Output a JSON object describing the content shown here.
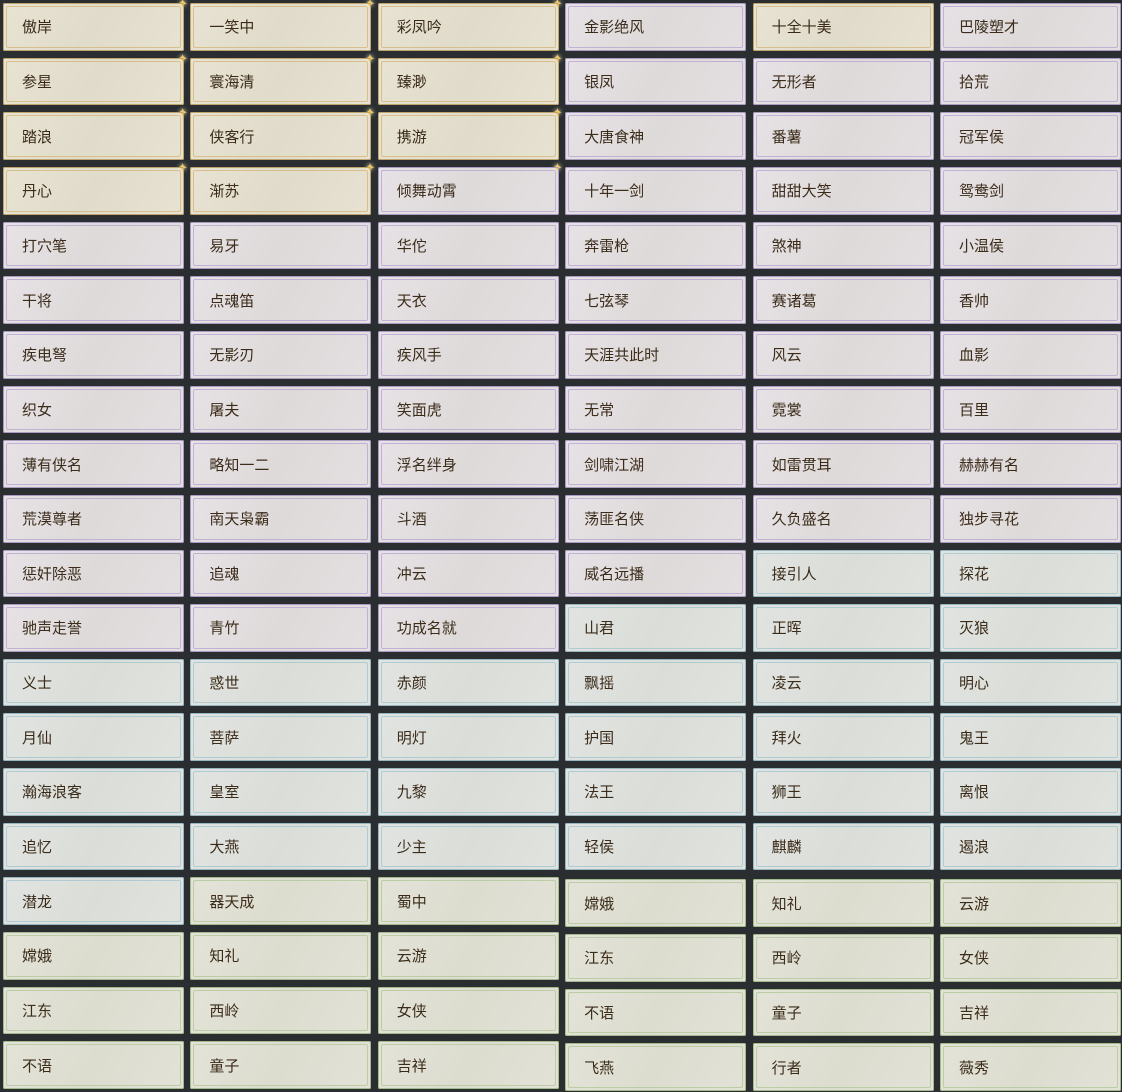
{
  "tier_colors": {
    "gold": "#d3b77a",
    "purple": "#b6a6cf",
    "blue": "#a5c4cf",
    "green": "#b3c79a"
  },
  "titles": [
    [
      [
        "傲岸",
        "gold",
        true
      ],
      [
        "一笑中",
        "gold",
        true
      ],
      [
        "彩凤吟",
        "gold",
        true
      ],
      [
        "金影绝风",
        "purple",
        false
      ],
      [
        "十全十美",
        "gold",
        false
      ],
      [
        "巴陵塑才",
        "purple",
        false
      ]
    ],
    [
      [
        "参星",
        "gold",
        true
      ],
      [
        "寰海清",
        "gold",
        true
      ],
      [
        "臻渺",
        "gold",
        true
      ],
      [
        "银凤",
        "purple",
        false
      ],
      [
        "无形者",
        "purple",
        false
      ],
      [
        "拾荒",
        "purple",
        false
      ]
    ],
    [
      [
        "踏浪",
        "gold",
        true
      ],
      [
        "侠客行",
        "gold",
        true
      ],
      [
        "携游",
        "gold",
        true
      ],
      [
        "大唐食神",
        "purple",
        false
      ],
      [
        "番薯",
        "purple",
        false
      ],
      [
        "冠军侯",
        "purple",
        false
      ]
    ],
    [
      [
        "丹心",
        "gold",
        true
      ],
      [
        "渐苏",
        "gold",
        true
      ],
      [
        "倾舞动霄",
        "purple",
        true
      ],
      [
        "十年一剑",
        "purple",
        false
      ],
      [
        "甜甜大笑",
        "purple",
        false
      ],
      [
        "鸳鸯剑",
        "purple",
        false
      ]
    ],
    [
      [
        "打穴笔",
        "purple",
        false
      ],
      [
        "易牙",
        "purple",
        false
      ],
      [
        "华佗",
        "purple",
        false
      ],
      [
        "奔雷枪",
        "purple",
        false
      ],
      [
        "煞神",
        "purple",
        false
      ],
      [
        "小温侯",
        "purple",
        false
      ]
    ],
    [
      [
        "干将",
        "purple",
        false
      ],
      [
        "点魂笛",
        "purple",
        false
      ],
      [
        "天衣",
        "purple",
        false
      ],
      [
        "七弦琴",
        "purple",
        false
      ],
      [
        "赛诸葛",
        "purple",
        false
      ],
      [
        "香帅",
        "purple",
        false
      ]
    ],
    [
      [
        "疾电弩",
        "purple",
        false
      ],
      [
        "无影刃",
        "purple",
        false
      ],
      [
        "疾风手",
        "purple",
        false
      ],
      [
        "天涯共此时",
        "purple",
        false
      ],
      [
        "风云",
        "purple",
        false
      ],
      [
        "血影",
        "purple",
        false
      ]
    ],
    [
      [
        "织女",
        "purple",
        false
      ],
      [
        "屠夫",
        "purple",
        false
      ],
      [
        "笑面虎",
        "purple",
        false
      ],
      [
        "无常",
        "purple",
        false
      ],
      [
        "霓裳",
        "purple",
        false
      ],
      [
        "百里",
        "purple",
        false
      ]
    ],
    [
      [
        "薄有侠名",
        "purple",
        false
      ],
      [
        "略知一二",
        "purple",
        false
      ],
      [
        "浮名绊身",
        "purple",
        false
      ],
      [
        "剑啸江湖",
        "purple",
        false
      ],
      [
        "如雷贯耳",
        "purple",
        false
      ],
      [
        "赫赫有名",
        "purple",
        false
      ]
    ],
    [
      [
        "荒漠尊者",
        "purple",
        false
      ],
      [
        "南天枭霸",
        "purple",
        false
      ],
      [
        "斗酒",
        "purple",
        false
      ],
      [
        "荡匪名侠",
        "purple",
        false
      ],
      [
        "久负盛名",
        "purple",
        false
      ],
      [
        "独步寻花",
        "purple",
        false
      ]
    ],
    [
      [
        "惩奸除恶",
        "purple",
        false
      ],
      [
        "追魂",
        "purple",
        false
      ],
      [
        "冲云",
        "purple",
        false
      ],
      [
        "威名远播",
        "purple",
        false
      ],
      [
        "接引人",
        "blue",
        false
      ],
      [
        "探花",
        "blue",
        false
      ]
    ],
    [
      [
        "驰声走誉",
        "purple",
        false
      ],
      [
        "青竹",
        "purple",
        false
      ],
      [
        "功成名就",
        "purple",
        false
      ],
      [
        "山君",
        "blue",
        false
      ],
      [
        "正晖",
        "blue",
        false
      ],
      [
        "灭狼",
        "blue",
        false
      ]
    ],
    [
      [
        "义士",
        "blue",
        false
      ],
      [
        "惑世",
        "blue",
        false
      ],
      [
        "赤颜",
        "blue",
        false
      ],
      [
        "飘摇",
        "blue",
        false
      ],
      [
        "凌云",
        "blue",
        false
      ],
      [
        "明心",
        "blue",
        false
      ]
    ],
    [
      [
        "月仙",
        "blue",
        false
      ],
      [
        "菩萨",
        "blue",
        false
      ],
      [
        "明灯",
        "blue",
        false
      ],
      [
        "护国",
        "blue",
        false
      ],
      [
        "拜火",
        "blue",
        false
      ],
      [
        "鬼王",
        "blue",
        false
      ]
    ],
    [
      [
        "瀚海浪客",
        "blue",
        false
      ],
      [
        "皇室",
        "blue",
        false
      ],
      [
        "九黎",
        "blue",
        false
      ],
      [
        "法王",
        "blue",
        false
      ],
      [
        "狮王",
        "blue",
        false
      ],
      [
        "离恨",
        "blue",
        false
      ]
    ],
    [
      [
        "追忆",
        "blue",
        false
      ],
      [
        "大燕",
        "blue",
        false
      ],
      [
        "少主",
        "blue",
        false
      ],
      [
        "轻侯",
        "blue",
        false
      ],
      [
        "麒麟",
        "blue",
        false
      ],
      [
        "遏浪",
        "blue",
        false
      ]
    ],
    [
      [
        "潜龙",
        "blue",
        false
      ],
      [
        "器天成",
        "green",
        false
      ],
      [
        "蜀中",
        "green",
        false
      ],
      [
        "嫦娥",
        "green",
        false
      ],
      [
        "知礼",
        "green",
        false
      ],
      [
        "云游",
        "green",
        false
      ]
    ],
    [
      [
        "嫦娥",
        "green",
        false
      ],
      [
        "知礼",
        "green",
        false
      ],
      [
        "云游",
        "green",
        false
      ],
      [
        "江东",
        "green",
        false
      ],
      [
        "西岭",
        "green",
        false
      ],
      [
        "女侠",
        "green",
        false
      ]
    ],
    [
      [
        "江东",
        "green",
        false
      ],
      [
        "西岭",
        "green",
        false
      ],
      [
        "女侠",
        "green",
        false
      ],
      [
        "不语",
        "green",
        false
      ],
      [
        "童子",
        "green",
        false
      ],
      [
        "吉祥",
        "green",
        false
      ]
    ],
    [
      [
        "不语",
        "green",
        false
      ],
      [
        "童子",
        "green",
        false
      ],
      [
        "吉祥",
        "green",
        false
      ],
      [
        "飞燕",
        "green",
        false
      ],
      [
        "行者",
        "green",
        false
      ],
      [
        "薇秀",
        "green",
        false
      ]
    ]
  ]
}
